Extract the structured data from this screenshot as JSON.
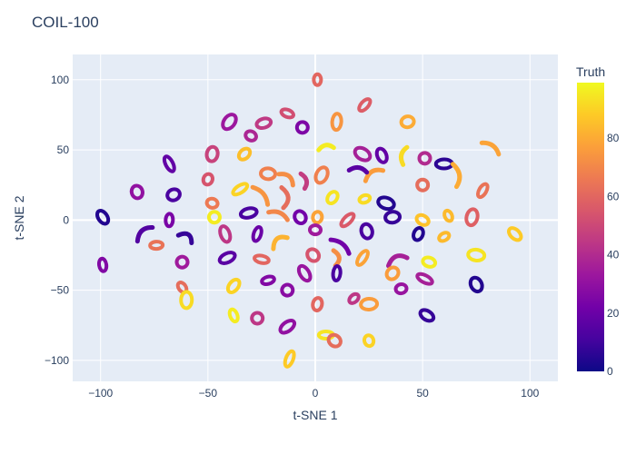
{
  "chart_data": {
    "type": "scatter",
    "title": "COIL-100",
    "xlabel": "t-SNE 1",
    "ylabel": "t-SNE 2",
    "xlim": [
      -113,
      113
    ],
    "ylim": [
      -115,
      118
    ],
    "xticks": [
      -100,
      -50,
      0,
      50,
      100
    ],
    "yticks": [
      -100,
      -50,
      0,
      50,
      100
    ],
    "xtick_labels": [
      "−100",
      "−50",
      "0",
      "50",
      "100"
    ],
    "ytick_labels": [
      "−100",
      "−50",
      "0",
      "50",
      "100"
    ],
    "grid": true,
    "colorbar": {
      "title": "Truth",
      "range": [
        0,
        99
      ],
      "ticks": [
        0,
        20,
        40,
        60,
        80
      ],
      "colorscale": [
        "#0d0887",
        "#46039f",
        "#7201a8",
        "#9c179e",
        "#bd3786",
        "#d8576b",
        "#ed7953",
        "#fb9f3a",
        "#fdca26",
        "#f0f921"
      ]
    },
    "series": [
      {
        "x": 1,
        "y": 100,
        "truth": 60,
        "shape": "ring"
      },
      {
        "x": -40,
        "y": 70,
        "truth": 33,
        "shape": "ring"
      },
      {
        "x": -24,
        "y": 69,
        "truth": 45,
        "shape": "ring"
      },
      {
        "x": -13,
        "y": 76,
        "truth": 52,
        "shape": "ring"
      },
      {
        "x": -6,
        "y": 66,
        "truth": 25,
        "shape": "ring"
      },
      {
        "x": 10,
        "y": 70,
        "truth": 74,
        "shape": "ring"
      },
      {
        "x": 23,
        "y": 82,
        "truth": 57,
        "shape": "ring"
      },
      {
        "x": 43,
        "y": 70,
        "truth": 80,
        "shape": "ring"
      },
      {
        "x": -30,
        "y": 60,
        "truth": 38,
        "shape": "ring"
      },
      {
        "x": -68,
        "y": 40,
        "truth": 18,
        "shape": "ring"
      },
      {
        "x": -48,
        "y": 47,
        "truth": 48,
        "shape": "ring"
      },
      {
        "x": -33,
        "y": 47,
        "truth": 85,
        "shape": "ring"
      },
      {
        "x": 5,
        "y": 52,
        "truth": 96,
        "shape": "curve"
      },
      {
        "x": 22,
        "y": 47,
        "truth": 36,
        "shape": "ring"
      },
      {
        "x": 31,
        "y": 46,
        "truth": 18,
        "shape": "ring"
      },
      {
        "x": 41,
        "y": 46,
        "truth": 92,
        "shape": "curve"
      },
      {
        "x": 51,
        "y": 44,
        "truth": 40,
        "shape": "ring"
      },
      {
        "x": 60,
        "y": 40,
        "truth": 6,
        "shape": "ring"
      },
      {
        "x": 82,
        "y": 52,
        "truth": 78,
        "shape": "curve"
      },
      {
        "x": -83,
        "y": 20,
        "truth": 30,
        "shape": "ring"
      },
      {
        "x": -50,
        "y": 29,
        "truth": 54,
        "shape": "ring"
      },
      {
        "x": -35,
        "y": 22,
        "truth": 90,
        "shape": "ring"
      },
      {
        "x": -22,
        "y": 33,
        "truth": 68,
        "shape": "ring"
      },
      {
        "x": -13,
        "y": 30,
        "truth": 72,
        "shape": "curve"
      },
      {
        "x": -5,
        "y": 28,
        "truth": 46,
        "shape": "curve"
      },
      {
        "x": 3,
        "y": 32,
        "truth": 68,
        "shape": "ring"
      },
      {
        "x": 27,
        "y": 33,
        "truth": 76,
        "shape": "curve"
      },
      {
        "x": 20,
        "y": 36,
        "truth": 16,
        "shape": "curve"
      },
      {
        "x": 50,
        "y": 25,
        "truth": 62,
        "shape": "ring"
      },
      {
        "x": 66,
        "y": 32,
        "truth": 80,
        "shape": "curve"
      },
      {
        "x": 78,
        "y": 21,
        "truth": 64,
        "shape": "ring"
      },
      {
        "x": -66,
        "y": 18,
        "truth": 12,
        "shape": "ring"
      },
      {
        "x": -48,
        "y": 12,
        "truth": 66,
        "shape": "ring"
      },
      {
        "x": -25,
        "y": 18,
        "truth": 74,
        "shape": "curve"
      },
      {
        "x": -14,
        "y": 16,
        "truth": 62,
        "shape": "curve"
      },
      {
        "x": 8,
        "y": 16,
        "truth": 94,
        "shape": "ring"
      },
      {
        "x": 23,
        "y": 15,
        "truth": 92,
        "shape": "ring"
      },
      {
        "x": 33,
        "y": 12,
        "truth": 4,
        "shape": "ring"
      },
      {
        "x": -99,
        "y": 2,
        "truth": 4,
        "shape": "ring"
      },
      {
        "x": -68,
        "y": 0,
        "truth": 24,
        "shape": "ring"
      },
      {
        "x": -47,
        "y": 2,
        "truth": 96,
        "shape": "ring"
      },
      {
        "x": -31,
        "y": 5,
        "truth": 12,
        "shape": "ring"
      },
      {
        "x": -17,
        "y": 4,
        "truth": 70,
        "shape": "curve"
      },
      {
        "x": -7,
        "y": 2,
        "truth": 22,
        "shape": "ring"
      },
      {
        "x": 1,
        "y": 2,
        "truth": 78,
        "shape": "ring"
      },
      {
        "x": 15,
        "y": 0,
        "truth": 56,
        "shape": "ring"
      },
      {
        "x": 36,
        "y": 2,
        "truth": 8,
        "shape": "ring"
      },
      {
        "x": 50,
        "y": 0,
        "truth": 86,
        "shape": "ring"
      },
      {
        "x": 62,
        "y": 3,
        "truth": 84,
        "shape": "ring"
      },
      {
        "x": 73,
        "y": 2,
        "truth": 58,
        "shape": "ring"
      },
      {
        "x": -80,
        "y": -9,
        "truth": 14,
        "shape": "curve"
      },
      {
        "x": -74,
        "y": -18,
        "truth": 64,
        "shape": "ring"
      },
      {
        "x": -60,
        "y": -12,
        "truth": 8,
        "shape": "curve"
      },
      {
        "x": -42,
        "y": -10,
        "truth": 44,
        "shape": "ring"
      },
      {
        "x": -27,
        "y": -10,
        "truth": 20,
        "shape": "ring"
      },
      {
        "x": -17,
        "y": -15,
        "truth": 82,
        "shape": "curve"
      },
      {
        "x": 0,
        "y": -7,
        "truth": 34,
        "shape": "ring"
      },
      {
        "x": 12,
        "y": -18,
        "truth": 22,
        "shape": "curve"
      },
      {
        "x": 24,
        "y": -8,
        "truth": 12,
        "shape": "ring"
      },
      {
        "x": 48,
        "y": -10,
        "truth": 4,
        "shape": "ring"
      },
      {
        "x": 60,
        "y": -12,
        "truth": 84,
        "shape": "ring"
      },
      {
        "x": 75,
        "y": -25,
        "truth": 94,
        "shape": "ring"
      },
      {
        "x": 93,
        "y": -10,
        "truth": 88,
        "shape": "ring"
      },
      {
        "x": -99,
        "y": -32,
        "truth": 26,
        "shape": "ring"
      },
      {
        "x": -62,
        "y": -30,
        "truth": 34,
        "shape": "ring"
      },
      {
        "x": -41,
        "y": -27,
        "truth": 16,
        "shape": "ring"
      },
      {
        "x": -25,
        "y": -28,
        "truth": 60,
        "shape": "ring"
      },
      {
        "x": -1,
        "y": -25,
        "truth": 54,
        "shape": "ring"
      },
      {
        "x": 10,
        "y": -27,
        "truth": 72,
        "shape": "curve"
      },
      {
        "x": 22,
        "y": -27,
        "truth": 78,
        "shape": "ring"
      },
      {
        "x": 38,
        "y": -28,
        "truth": 36,
        "shape": "curve"
      },
      {
        "x": 53,
        "y": -30,
        "truth": 96,
        "shape": "ring"
      },
      {
        "x": -62,
        "y": -48,
        "truth": 62,
        "shape": "ring"
      },
      {
        "x": -60,
        "y": -57,
        "truth": 92,
        "shape": "ring"
      },
      {
        "x": -38,
        "y": -47,
        "truth": 90,
        "shape": "ring"
      },
      {
        "x": -22,
        "y": -43,
        "truth": 26,
        "shape": "ring"
      },
      {
        "x": -13,
        "y": -50,
        "truth": 28,
        "shape": "ring"
      },
      {
        "x": -5,
        "y": -38,
        "truth": 32,
        "shape": "ring"
      },
      {
        "x": 10,
        "y": -38,
        "truth": 12,
        "shape": "ring"
      },
      {
        "x": 36,
        "y": -38,
        "truth": 76,
        "shape": "ring"
      },
      {
        "x": 40,
        "y": -49,
        "truth": 32,
        "shape": "ring"
      },
      {
        "x": 51,
        "y": -42,
        "truth": 36,
        "shape": "ring"
      },
      {
        "x": 75,
        "y": -46,
        "truth": 4,
        "shape": "ring"
      },
      {
        "x": 1,
        "y": -60,
        "truth": 60,
        "shape": "ring"
      },
      {
        "x": 18,
        "y": -56,
        "truth": 44,
        "shape": "ring"
      },
      {
        "x": 25,
        "y": -60,
        "truth": 76,
        "shape": "ring"
      },
      {
        "x": 52,
        "y": -68,
        "truth": 8,
        "shape": "ring"
      },
      {
        "x": -38,
        "y": -68,
        "truth": 96,
        "shape": "ring"
      },
      {
        "x": -27,
        "y": -70,
        "truth": 44,
        "shape": "ring"
      },
      {
        "x": -13,
        "y": -76,
        "truth": 30,
        "shape": "ring"
      },
      {
        "x": 5,
        "y": -82,
        "truth": 94,
        "shape": "ring"
      },
      {
        "x": 9,
        "y": -86,
        "truth": 62,
        "shape": "ring"
      },
      {
        "x": 25,
        "y": -86,
        "truth": 90,
        "shape": "ring"
      },
      {
        "x": -12,
        "y": -99,
        "truth": 88,
        "shape": "ring"
      }
    ]
  }
}
